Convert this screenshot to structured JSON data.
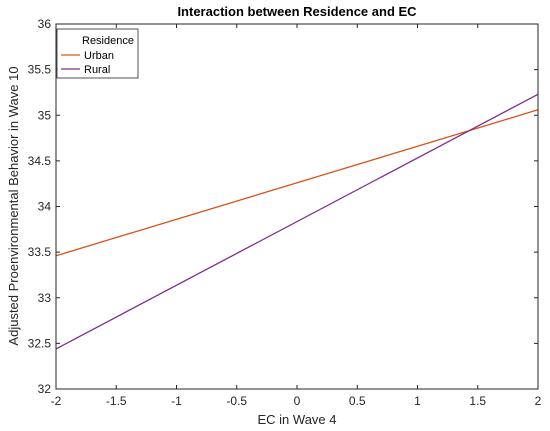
{
  "chart_data": {
    "type": "line",
    "title": "Interaction between Residence and EC",
    "xlabel": "EC in Wave 4",
    "ylabel": "Adjusted Proenvironmental Behavior in Wave 10",
    "xlim": [
      -2,
      2
    ],
    "ylim": [
      32,
      36
    ],
    "xticks": [
      -2,
      -1.5,
      -1,
      -0.5,
      0,
      0.5,
      1,
      1.5,
      2
    ],
    "yticks": [
      32,
      32.5,
      33,
      33.5,
      34,
      34.5,
      35,
      35.5,
      36
    ],
    "xtick_labels": [
      "-2",
      "-1.5",
      "-1",
      "-0.5",
      "0",
      "0.5",
      "1",
      "1.5",
      "2"
    ],
    "ytick_labels": [
      "32",
      "32.5",
      "33",
      "33.5",
      "34",
      "34.5",
      "35",
      "35.5",
      "36"
    ],
    "grid": false,
    "legend": {
      "title": "Residence",
      "placement": "top-left"
    },
    "series": [
      {
        "name": "Urban",
        "color": "#D95319",
        "x": [
          -2,
          2
        ],
        "y": [
          33.46,
          35.06
        ]
      },
      {
        "name": "Rural",
        "color": "#7E2F8E",
        "x": [
          -2,
          2
        ],
        "y": [
          32.44,
          35.23
        ]
      }
    ]
  }
}
